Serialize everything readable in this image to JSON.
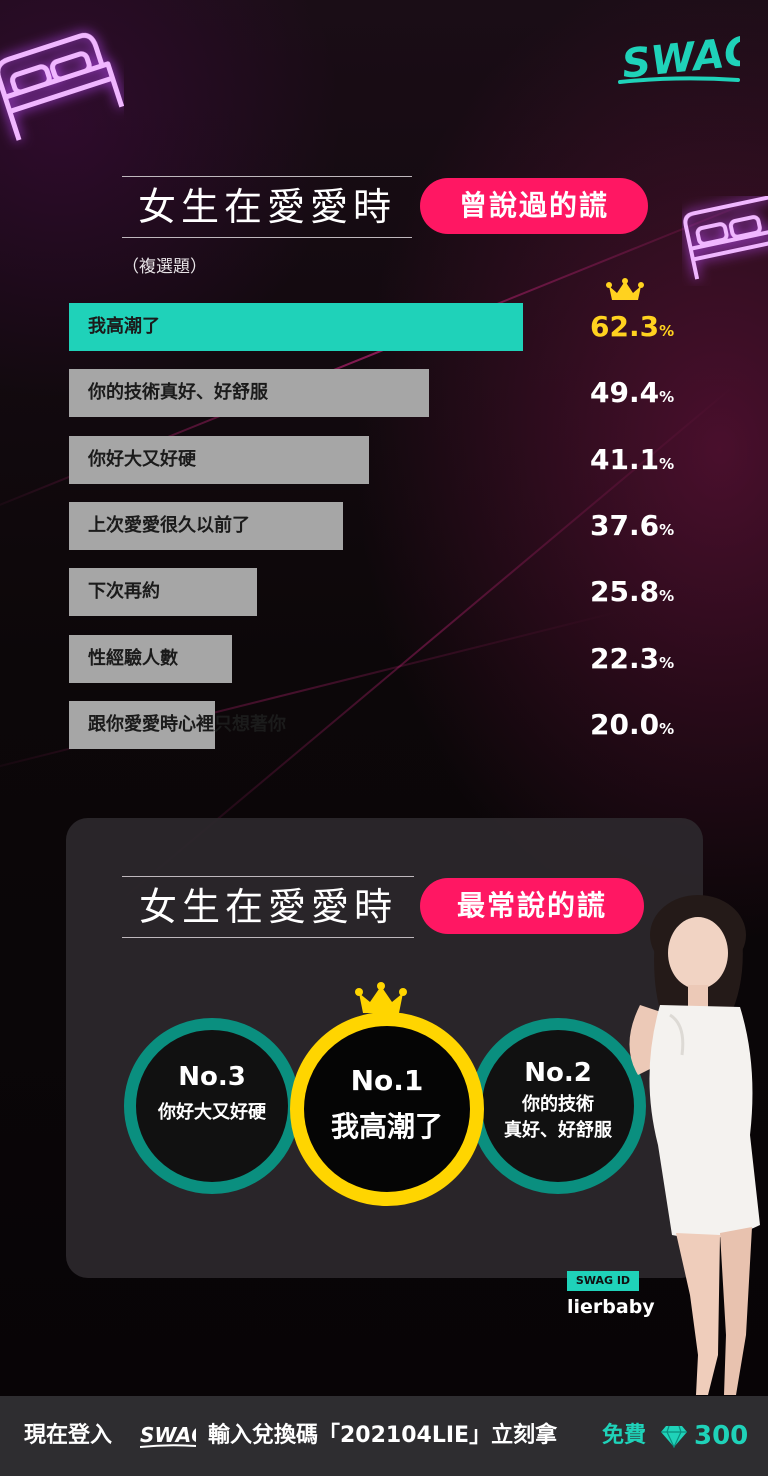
{
  "colors": {
    "accent": "#ff1763",
    "highlight_bar": "#1fd2b9",
    "regular_bar": "#a6a6a6",
    "top_value": "#ffd21f",
    "rank1_ring": "#ffd500",
    "rank_ring": "#0a8f7f"
  },
  "section1": {
    "title": "女生在愛愛時",
    "badge": "曾說過的謊",
    "note": "（複選題）"
  },
  "section2": {
    "title": "女生在愛愛時",
    "badge": "最常說的謊",
    "ranks": [
      {
        "rank": "No.1",
        "label": "我高潮了"
      },
      {
        "rank": "No.2",
        "label_line1": "你的技術",
        "label_line2": "真好、好舒服"
      },
      {
        "rank": "No.3",
        "label": "你好大又好硬"
      }
    ]
  },
  "chart_data": {
    "type": "bar",
    "orientation": "horizontal",
    "categories": [
      "我高潮了",
      "你的技術真好、好舒服",
      "你好大又好硬",
      "上次愛愛很久以前了",
      "下次再約",
      "性經驗人數",
      "跟你愛愛時心裡只想著你"
    ],
    "values": [
      62.3,
      49.4,
      41.1,
      37.6,
      25.8,
      22.3,
      20.0
    ],
    "value_labels": [
      "62.3",
      "49.4",
      "41.1",
      "37.6",
      "25.8",
      "22.3",
      "20.0"
    ],
    "unit": "%",
    "highlight_index": 0
  },
  "credit": {
    "tag": "SWAG ID",
    "username": "lierbaby"
  },
  "footer": {
    "text_start": "現在登入",
    "text_middle": "輸入兌換碼「202104LIE」立刻拿",
    "free_text": "免費",
    "amount": "300"
  }
}
